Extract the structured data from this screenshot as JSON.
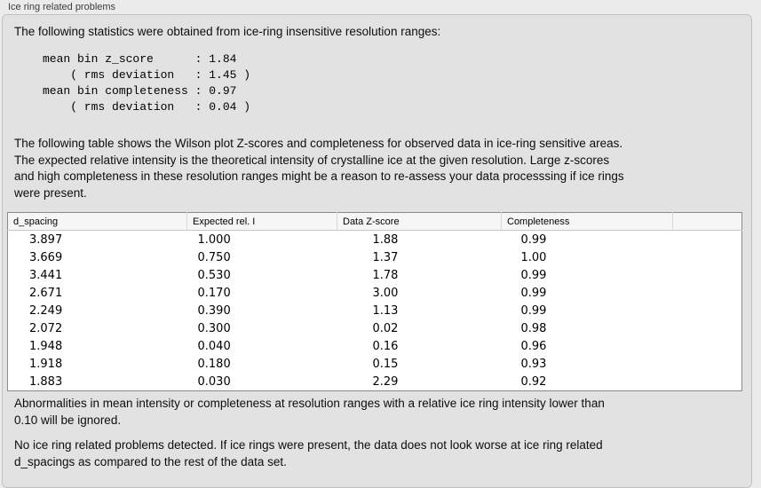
{
  "panel": {
    "title": "Ice ring related problems"
  },
  "stats": {
    "intro": "The following statistics were obtained from ice-ring insensitive resolution ranges:",
    "block": "mean bin z_score      : 1.84\n    ( rms deviation   : 1.45 )\nmean bin completeness : 0.97\n    ( rms deviation   : 0.04 )",
    "mean_bin_z_score": "1.84",
    "z_score_rms_deviation": "1.45",
    "mean_bin_completeness": "0.97",
    "completeness_rms_deviation": "0.04"
  },
  "description": "The following table shows the Wilson plot Z-scores and completeness for observed data in ice-ring sensitive areas.\nThe expected relative intensity is the theoretical intensity of crystalline ice at the given resolution. Large z-scores\nand high completeness in these resolution ranges might be a reason to re-assess your data processsing if ice rings\nwere present.",
  "table": {
    "columns": [
      "d_spacing",
      "Expected rel. I",
      "Data Z-score",
      "Completeness",
      ""
    ],
    "rows": [
      [
        "3.897",
        "1.000",
        "1.88",
        "0.99"
      ],
      [
        "3.669",
        "0.750",
        "1.37",
        "1.00"
      ],
      [
        "3.441",
        "0.530",
        "1.78",
        "0.99"
      ],
      [
        "2.671",
        "0.170",
        "3.00",
        "0.99"
      ],
      [
        "2.249",
        "0.390",
        "1.13",
        "0.99"
      ],
      [
        "2.072",
        "0.300",
        "0.02",
        "0.98"
      ],
      [
        "1.948",
        "0.040",
        "0.16",
        "0.96"
      ],
      [
        "1.918",
        "0.180",
        "0.15",
        "0.93"
      ],
      [
        "1.883",
        "0.030",
        "2.29",
        "0.92"
      ]
    ]
  },
  "notes": {
    "ignore_note": "Abnormalities in mean intensity or completeness at resolution ranges with a relative ice ring intensity lower than\n0.10 will be ignored.",
    "conclusion": "No ice ring related problems detected. If ice rings were present, the data does not look worse at ice ring related\nd_spacings as compared to the rest of the data set."
  },
  "colors": {
    "window_background": "#ebebeb",
    "groupbox_background": "#e2e2e2",
    "groupbox_border": "#c2c2c2",
    "table_border": "#8a8a8a",
    "table_header_background": "#f6f6f6",
    "text": "#000000"
  }
}
